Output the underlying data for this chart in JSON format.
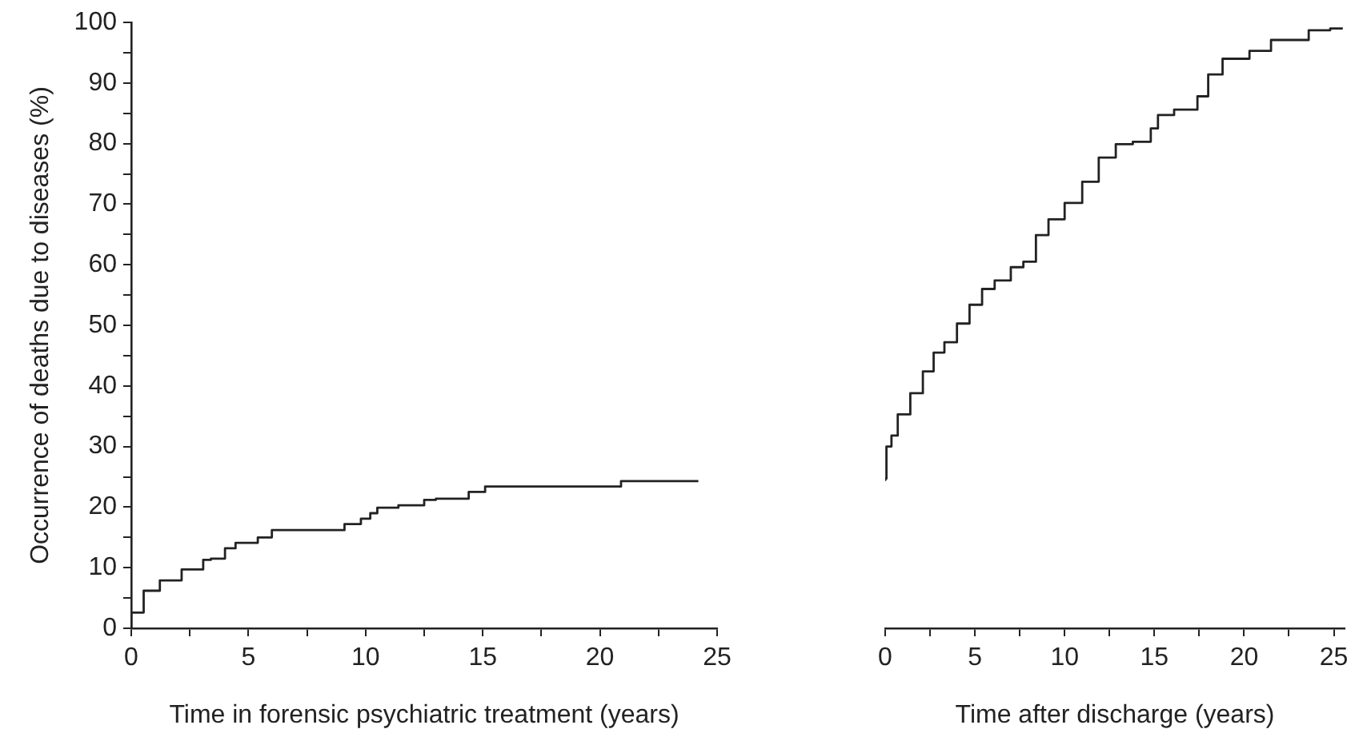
{
  "chart_data": [
    {
      "type": "step",
      "xlabel": "Time in forensic psychiatric treatment (years)",
      "ylabel": "Occurrence of deaths due to diseases (%)",
      "series": [
        {
          "color": "#222222",
          "x": [
            0,
            0.53,
            1.22,
            2.15,
            3.07,
            3.4,
            4.0,
            4.45,
            5.4,
            6.0,
            6.3,
            9.1,
            9.8,
            10.2,
            10.5,
            11.4,
            12.5,
            13.0,
            14.4,
            15.1,
            15.8,
            20.9,
            21.1,
            24.2
          ],
          "values": [
            0,
            2.6,
            6.2,
            7.9,
            9.7,
            11.3,
            11.5,
            13.2,
            14.1,
            15,
            16.2,
            16.2,
            17.2,
            18.1,
            19,
            19.9,
            20.3,
            21.2,
            21.4,
            22.5,
            23.4,
            23.4,
            24.3,
            24.3
          ]
        }
      ],
      "xlim": [
        0,
        25
      ],
      "xticks": [
        0,
        {
          "value": 2.5,
          "label": null
        },
        5,
        {
          "value": 7.5,
          "label": null
        },
        10,
        {
          "value": 12.5,
          "label": null
        },
        15,
        {
          "value": 17.5,
          "label": null
        },
        20,
        {
          "value": 22.5,
          "label": null
        },
        25
      ],
      "ylim": [
        0,
        100
      ],
      "yticks": [
        0,
        {
          "value": 5,
          "label": null
        },
        10,
        {
          "value": 15,
          "label": null
        },
        20,
        {
          "value": 25,
          "label": null
        },
        30,
        {
          "value": 35,
          "label": null
        },
        40,
        {
          "value": 45,
          "label": null
        },
        50,
        {
          "value": 55,
          "label": null
        },
        60,
        {
          "value": 65,
          "label": null
        },
        70,
        {
          "value": 75,
          "label": null
        },
        80,
        {
          "value": 85,
          "label": null
        },
        90,
        {
          "value": 95,
          "label": null
        },
        100
      ],
      "grid": false,
      "legend": false
    },
    {
      "type": "step",
      "xlabel": "Time after discharge (years)",
      "series": [
        {
          "color": "#222222",
          "x": [
            0,
            0.07,
            0.35,
            0.7,
            1.4,
            2.1,
            2.7,
            3.3,
            4.0,
            4.7,
            5.4,
            6.1,
            7.0,
            7.7,
            8.4,
            9.1,
            10.0,
            10.98,
            11.9,
            12.85,
            13.8,
            14.8,
            15.2,
            16.1,
            17.4,
            18.0,
            18.8,
            20.3,
            21.5,
            22.7,
            23.6,
            24.8,
            25.5
          ],
          "values": [
            24.3,
            24.7,
            30,
            31.8,
            35.3,
            38.8,
            42.4,
            45.5,
            47.2,
            50.3,
            53.4,
            56,
            57.4,
            59.6,
            60.5,
            64.9,
            67.5,
            70.2,
            73.7,
            77.7,
            79.9,
            80.3,
            82.5,
            84.7,
            85.6,
            87.8,
            91.4,
            94,
            95.3,
            97.1,
            97.1,
            98.7,
            99
          ]
        }
      ],
      "xlim": [
        0,
        25.6
      ],
      "xticks": [
        0,
        {
          "value": 2.5,
          "label": null
        },
        5,
        {
          "value": 7.5,
          "label": null
        },
        10,
        {
          "value": 12.5,
          "label": null
        },
        15,
        {
          "value": 17.5,
          "label": null
        },
        20,
        {
          "value": 22.5,
          "label": null
        },
        25
      ],
      "ylim": [
        0,
        100
      ],
      "tick_labels": "x",
      "grid": false,
      "legend": false
    }
  ]
}
